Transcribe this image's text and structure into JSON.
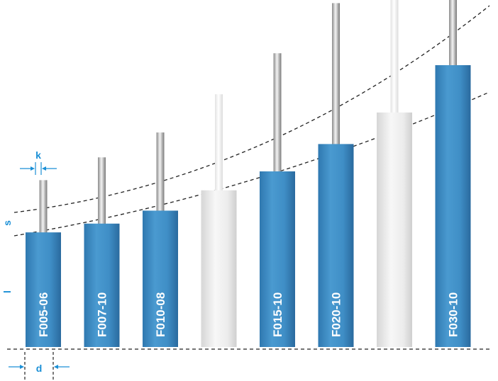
{
  "colors": {
    "blue": "#3f8ec6",
    "blue_dark": "#2d6fa3",
    "grey": "#e8e8e8",
    "rod": "#b8b8b8",
    "accent": "#1a8fd6",
    "dash": "#222222"
  },
  "dimensions": {
    "k": "k",
    "s": "s",
    "l": "l",
    "d": "d"
  },
  "cylinders": [
    {
      "label": "F005-06",
      "active": true,
      "body": 0.327,
      "stroke": 0.149
    },
    {
      "label": "F007-10",
      "active": true,
      "body": 0.352,
      "stroke": 0.189
    },
    {
      "label": "F010-08",
      "active": true,
      "body": 0.389,
      "stroke": 0.223
    },
    {
      "label": "",
      "active": false,
      "body": 0.447,
      "stroke": 0.274
    },
    {
      "label": "F015-10",
      "active": true,
      "body": 0.501,
      "stroke": 0.337
    },
    {
      "label": "F020-10",
      "active": true,
      "body": 0.579,
      "stroke": 0.402
    },
    {
      "label": "",
      "active": false,
      "body": 0.669,
      "stroke": 0.482
    },
    {
      "label": "F030-10",
      "active": true,
      "body": 0.804,
      "stroke": 0.573
    }
  ]
}
